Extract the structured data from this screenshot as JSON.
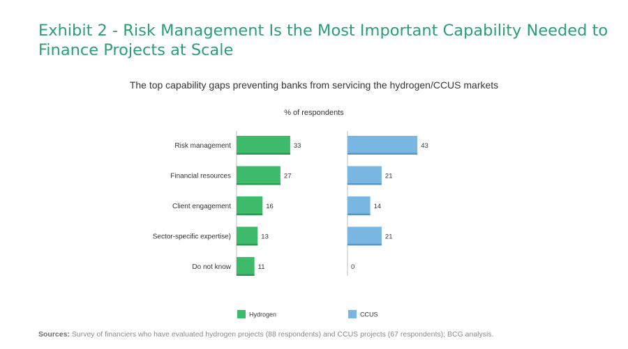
{
  "header": {
    "title": "Exhibit 2 - Risk Management Is the Most Important Capability Needed to Finance Projects at Scale"
  },
  "footer": {
    "sources_label": "Sources:",
    "sources_text": "Survey of financiers who have evaluated hydrogen projects (88 respondents) and CCUS projects (67 respondents); BCG analysis."
  },
  "chart_data": {
    "type": "bar",
    "orientation": "horizontal",
    "title": "The top capability gaps preventing banks from servicing the hydrogen/CCUS markets",
    "unit_label": "% of respondents",
    "categories": [
      "Risk management",
      "Financial resources",
      "Client engagement",
      "Sector-specific expertise)",
      "Do not know"
    ],
    "series": [
      {
        "name": "Hydrogen",
        "values": [
          33,
          27,
          16,
          13,
          11
        ],
        "color": "#3dba6a"
      },
      {
        "name": "CCUS",
        "values": [
          43,
          21,
          14,
          21,
          0
        ],
        "color": "#7ab6e2"
      }
    ],
    "legend_position": "bottom",
    "grid": false
  }
}
